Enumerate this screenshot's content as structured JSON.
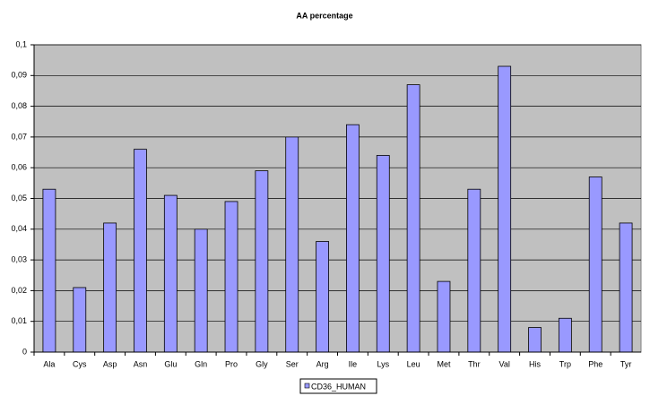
{
  "chart_data": {
    "type": "bar",
    "title": "AA percentage",
    "categories": [
      "Ala",
      "Cys",
      "Asp",
      "Asn",
      "Glu",
      "Gln",
      "Pro",
      "Gly",
      "Ser",
      "Arg",
      "Ile",
      "Lys",
      "Leu",
      "Met",
      "Thr",
      "Val",
      "His",
      "Trp",
      "Phe",
      "Tyr"
    ],
    "series": [
      {
        "name": "CD36_HUMAN",
        "color": "#9999ff",
        "values": [
          0.053,
          0.021,
          0.042,
          0.066,
          0.051,
          0.04,
          0.049,
          0.059,
          0.07,
          0.036,
          0.074,
          0.064,
          0.087,
          0.023,
          0.053,
          0.093,
          0.008,
          0.011,
          0.057,
          0.042
        ]
      }
    ],
    "ylim": [
      0,
      0.1
    ],
    "yticks": [
      0,
      {
        "value": 0.01,
        "label": "0,01"
      },
      {
        "value": 0.02,
        "label": "0,02"
      },
      {
        "value": 0.03,
        "label": "0,03"
      },
      {
        "value": 0.04,
        "label": "0,04"
      },
      {
        "value": 0.05,
        "label": "0,05"
      },
      {
        "value": 0.06,
        "label": "0,06"
      },
      {
        "value": 0.07,
        "label": "0,07"
      },
      {
        "value": 0.08,
        "label": "0,08"
      },
      {
        "value": 0.09,
        "label": "0,09"
      },
      {
        "value": 0.1,
        "label": "0,1"
      }
    ],
    "grid": true,
    "legend": "bottom"
  }
}
